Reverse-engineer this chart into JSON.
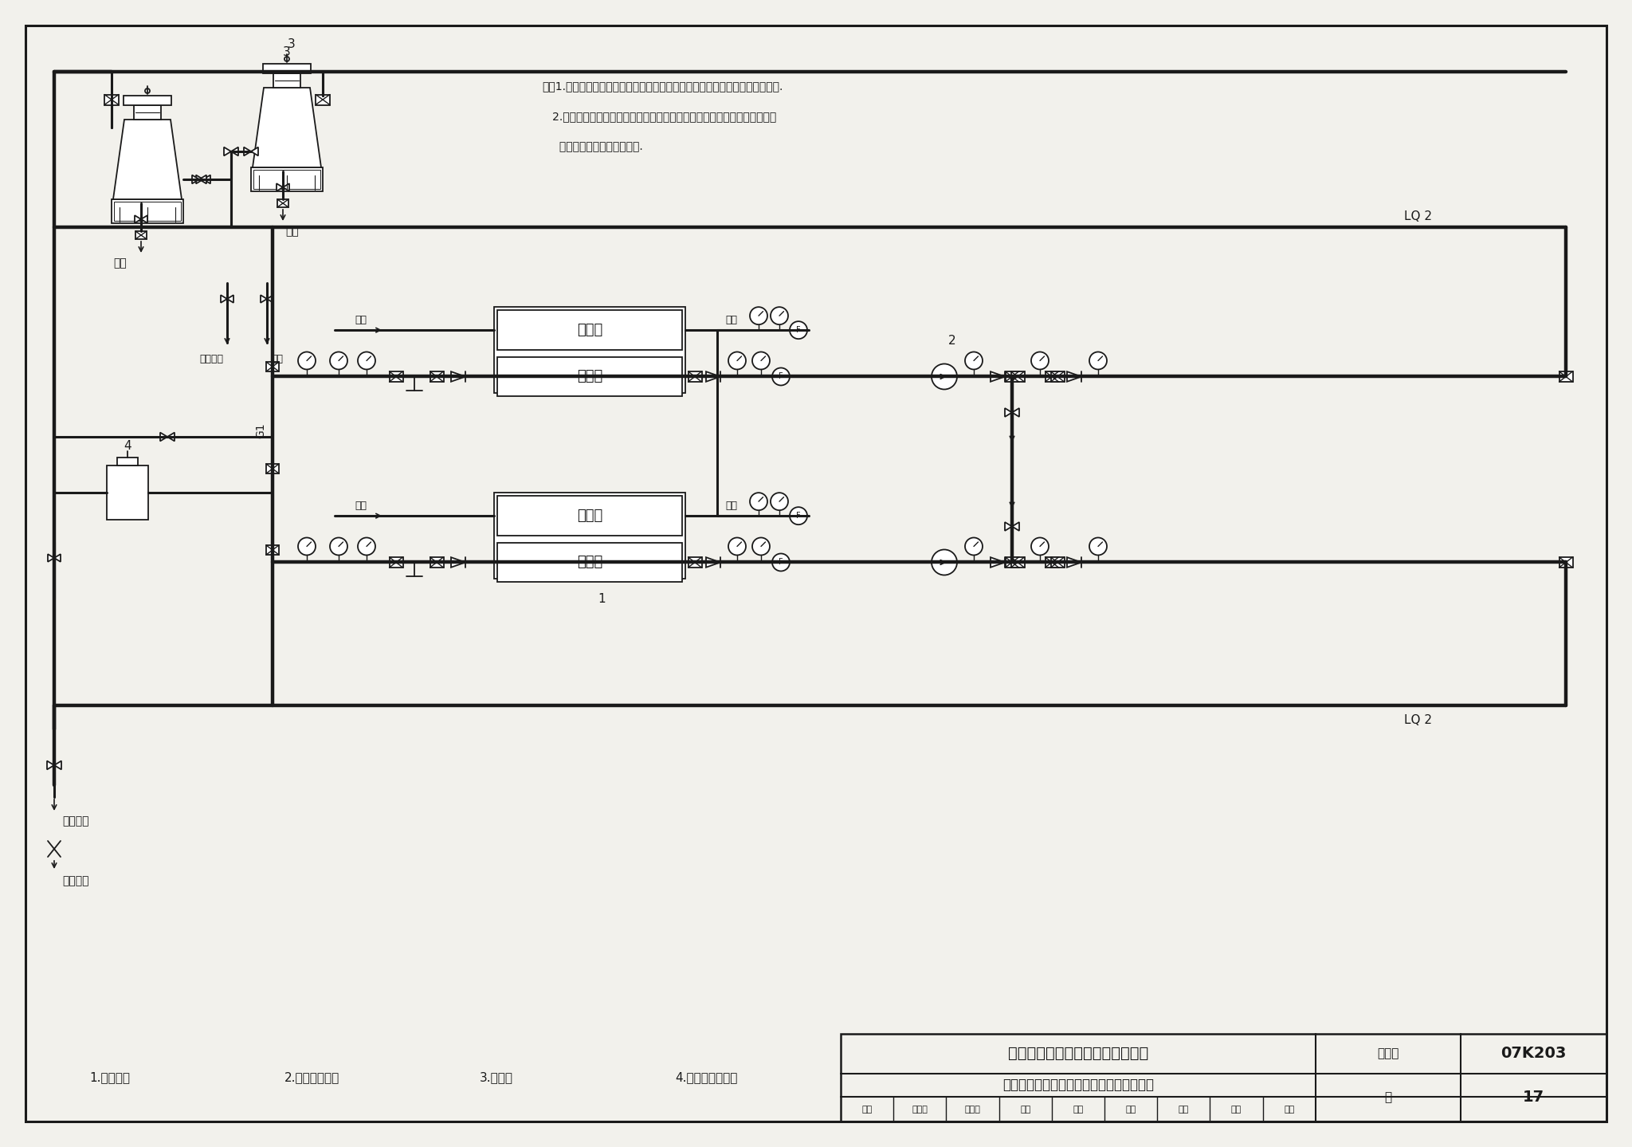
{
  "fig_width": 20.48,
  "fig_height": 14.39,
  "bg_color": "#f2f1ec",
  "line_color": "#1a1a1a",
  "title_main": "常规空调冷却水系统原理图（二）",
  "title_sub": "水泵后置、开式冷却塔、冷凝器一对一接管",
  "atlas_no_label": "图集号",
  "atlas_no": "07K203",
  "page_label": "页",
  "page_no": "17",
  "review_row": [
    "审核",
    "伍小亭",
    "但七季",
    "校对",
    "康清",
    "康清",
    "设计",
    "芦岩",
    "才发"
  ],
  "legend_items": [
    "1.冷水机组",
    "2.冷却水循环泵",
    "3.冷却塔",
    "4.自动水处理装置"
  ],
  "note_lines": [
    "注：1.水泵后置适合于冷却塔安装位置较高，前置可能导致冷凝器高承压的情况.",
    "   2.本图所示冬季泄水阀位置仅为示意，具体设置位置应保证冷却水系统冬季",
    "     不使用时，室外部分能泄空."
  ],
  "lq2_label": "LQ 2",
  "lq2_bottom_label": "LQ 2"
}
